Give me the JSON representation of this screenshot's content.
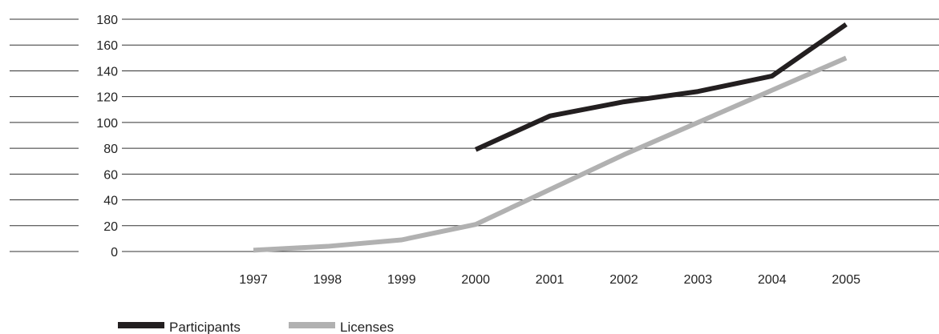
{
  "chart_data": {
    "type": "line",
    "title": "",
    "xlabel": "",
    "ylabel": "",
    "categories": [
      "1997",
      "1998",
      "1999",
      "2000",
      "2001",
      "2002",
      "2003",
      "2004",
      "2005"
    ],
    "ylim": [
      0,
      180
    ],
    "yticks": [
      "0",
      "20",
      "40",
      "60",
      "80",
      "100",
      "120",
      "140",
      "160",
      "180"
    ],
    "grid": "horizontal",
    "legend_position": "bottom-left",
    "series": [
      {
        "name": "Participants",
        "color": "#231f20",
        "values": [
          null,
          null,
          null,
          79,
          105,
          116,
          124,
          136,
          176
        ]
      },
      {
        "name": "Licenses",
        "color": "#b1b1b1",
        "values": [
          1,
          4,
          9,
          21,
          48,
          75,
          100,
          125,
          150
        ]
      }
    ]
  }
}
